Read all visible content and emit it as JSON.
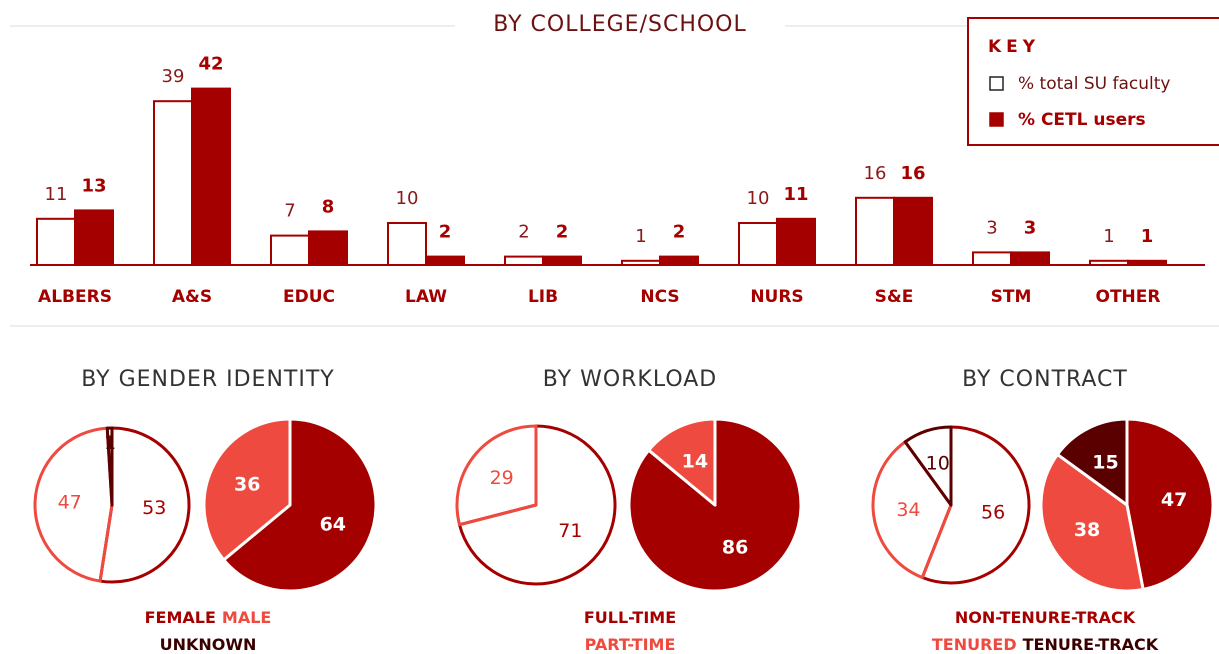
{
  "chart_data": [
    {
      "type": "bar",
      "title": "BY COLLEGE/SCHOOL",
      "categories": [
        "ALBERS",
        "A&S",
        "EDUC",
        "LAW",
        "LIB",
        "NCS",
        "NURS",
        "S&E",
        "STM",
        "OTHER"
      ],
      "series": [
        {
          "name": "% total SU faculty",
          "color": "#ffffff",
          "values": [
            11,
            39,
            7,
            10,
            2,
            1,
            10,
            16,
            3,
            1
          ]
        },
        {
          "name": "% CETL users",
          "color": "#a50000",
          "values": [
            13,
            42,
            8,
            2,
            2,
            2,
            11,
            16,
            3,
            1
          ]
        }
      ],
      "legend_title": "KEY",
      "legend": "top-right",
      "ylim": [
        0,
        45
      ]
    },
    {
      "type": "pie",
      "title": "BY GENDER IDENTITY",
      "categories": [
        "FEMALE",
        "MALE",
        "UNKNOWN"
      ],
      "colors": [
        "#a50000",
        "#ef4a3f",
        "#5a0000"
      ],
      "series": [
        {
          "values": [
            53,
            47,
            1
          ]
        },
        {
          "values": [
            64,
            36,
            null
          ]
        }
      ]
    },
    {
      "type": "pie",
      "title": "BY WORKLOAD",
      "categories": [
        "FULL-TIME",
        "PART-TIME"
      ],
      "colors": [
        "#a50000",
        "#ef4a3f"
      ],
      "series": [
        {
          "values": [
            71,
            29
          ]
        },
        {
          "values": [
            86,
            14
          ]
        }
      ]
    },
    {
      "type": "pie",
      "title": "BY CONTRACT",
      "categories": [
        "NON-TENURE-TRACK",
        "TENURED",
        "TENURE-TRACK"
      ],
      "colors": [
        "#a50000",
        "#ef4a3f",
        "#5a0000"
      ],
      "series": [
        {
          "values": [
            56,
            34,
            10
          ]
        },
        {
          "values": [
            47,
            38,
            15
          ]
        }
      ]
    }
  ]
}
